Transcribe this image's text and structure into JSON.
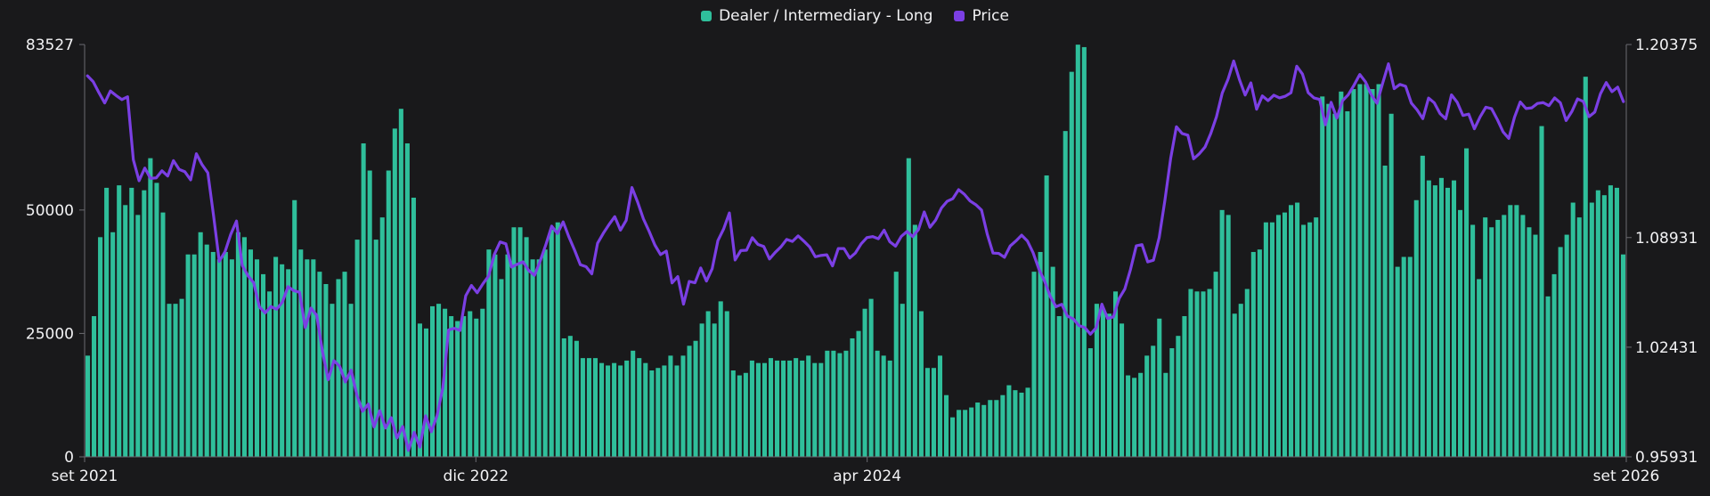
{
  "legend": {
    "series_1": "Dealer / Intermediary - Long",
    "series_2": "Price"
  },
  "colors": {
    "bars": "#2fbf9b",
    "line": "#7b3fe4",
    "axis": "#6a6a70",
    "background": "#19191b"
  },
  "chart_data": {
    "type": "bar",
    "series": [
      {
        "name": "Dealer / Intermediary - Long",
        "type": "bar",
        "axis": "left",
        "values": [
          20500,
          28500,
          44500,
          54500,
          45500,
          55000,
          51000,
          54500,
          49000,
          54000,
          60500,
          55500,
          49500,
          31000,
          31000,
          32000,
          41000,
          41000,
          45500,
          43000,
          41500,
          40000,
          41500,
          40000,
          45500,
          44500,
          42000,
          40000,
          37000,
          33500,
          40500,
          39000,
          38000,
          52000,
          42000,
          40000,
          40000,
          37500,
          35000,
          31000,
          36000,
          37500,
          31000,
          44000,
          63500,
          58000,
          44000,
          48500,
          58000,
          66500,
          70500,
          63500,
          52500,
          27000,
          26000,
          30500,
          31000,
          30000,
          28500,
          27500,
          28500,
          29500,
          28000,
          30000,
          42000,
          41000,
          36000,
          41000,
          46500,
          46500,
          44500,
          40000,
          40000,
          42000,
          46000,
          47500,
          24000,
          24500,
          23500,
          20000,
          20000,
          20000,
          19000,
          18500,
          19000,
          18500,
          19500,
          21500,
          20000,
          19000,
          17500,
          18000,
          18500,
          20500,
          18500,
          20500,
          22500,
          23500,
          27000,
          29500,
          27000,
          31500,
          29500,
          17500,
          16500,
          17000,
          19500,
          19000,
          19000,
          20000,
          19500,
          19500,
          19500,
          20000,
          19500,
          20500,
          19000,
          19000,
          21500,
          21500,
          21000,
          21500,
          24000,
          25500,
          30000,
          32000,
          21500,
          20500,
          19500,
          37500,
          31000,
          60500,
          47000,
          29500,
          18000,
          18000,
          20500,
          12500,
          8000,
          9500,
          9500,
          10000,
          11000,
          10500,
          11500,
          11500,
          12500,
          14500,
          13500,
          13000,
          14000,
          37500,
          41500,
          57000,
          38500,
          28500,
          66000,
          78000,
          83500,
          83000,
          22000,
          31000,
          30000,
          29000,
          33500,
          27000,
          16500,
          16000,
          17000,
          20500,
          22500,
          28000,
          17000,
          22000,
          24500,
          28500,
          34000,
          33500,
          33500,
          34000,
          37500,
          50000,
          49000,
          29000,
          31000,
          34000,
          41500,
          42000,
          47500,
          47500,
          49000,
          49500,
          51000,
          51500,
          47000,
          47500,
          48500,
          73000,
          71500,
          69500,
          74000,
          70000,
          74500,
          75500,
          75500,
          74500,
          75500,
          59000,
          69500,
          38500,
          40500,
          40500,
          52000,
          61000,
          56000,
          55000,
          56500,
          54500,
          56000,
          50000,
          62500,
          47000,
          36000,
          48500,
          46500,
          48000,
          49000,
          51000,
          51000,
          49000,
          46500,
          45000,
          67000,
          32500,
          37000,
          42500,
          45000,
          51500,
          48500,
          77000,
          51500,
          54000,
          53000,
          55000,
          54500,
          41000
        ]
      },
      {
        "name": "Price",
        "type": "line",
        "axis": "right",
        "values": [
          1.1852,
          1.1817,
          1.1752,
          1.1691,
          1.1762,
          1.1735,
          1.1711,
          1.1728,
          1.1355,
          1.123,
          1.1305,
          1.1244,
          1.1247,
          1.1289,
          1.1258,
          1.1349,
          1.1297,
          1.1283,
          1.1235,
          1.139,
          1.1325,
          1.1277,
          1.1023,
          1.0752,
          1.0809,
          1.0912,
          1.0991,
          1.0729,
          1.0667,
          1.0625,
          1.0482,
          1.0446,
          1.0484,
          1.0468,
          1.051,
          1.0602,
          1.0578,
          1.0569,
          1.0359,
          1.0475,
          1.0432,
          1.0219,
          1.005,
          1.0163,
          1.013,
          1.0037,
          1.0107,
          0.996,
          0.9863,
          0.9906,
          0.977,
          0.9866,
          0.9764,
          0.9825,
          0.9705,
          0.9773,
          0.9631,
          0.9738,
          0.9651,
          0.9836,
          0.9742,
          0.9838,
          1.0001,
          1.0345,
          1.0355,
          1.0342,
          1.0548,
          1.0609,
          1.0566,
          1.0619,
          1.0665,
          1.0794,
          1.0867,
          1.0856,
          1.0718,
          1.0735,
          1.0749,
          1.0697,
          1.0669,
          1.0755,
          1.0853,
          1.0961,
          1.0917,
          1.0986,
          1.0897,
          1.0818,
          1.0732,
          1.072,
          1.0678,
          1.0859,
          1.0918,
          1.097,
          1.1017,
          1.0937,
          1.0995,
          1.119,
          1.1103,
          1.1004,
          1.093,
          1.0849,
          1.0792,
          1.0813,
          1.0624,
          1.0662,
          1.0498,
          1.0633,
          1.0625,
          1.0713,
          1.0635,
          1.0708,
          1.0875,
          1.0944,
          1.1039,
          1.076,
          1.0816,
          1.0818,
          1.0892,
          1.0852,
          1.084,
          1.0766,
          1.0805,
          1.0838,
          1.0882,
          1.087,
          1.0903,
          1.0872,
          1.0838,
          1.0779,
          1.0787,
          1.0791,
          1.0725,
          1.0828,
          1.0828,
          1.0772,
          1.0802,
          1.0856,
          1.0893,
          1.0899,
          1.0886,
          1.0937,
          1.0868,
          1.0842,
          1.09,
          1.0929,
          1.0899,
          1.0941,
          1.1045,
          1.0954,
          1.0997,
          1.1068,
          1.1108,
          1.1124,
          1.1177,
          1.115,
          1.111,
          1.1088,
          1.1056,
          1.0913,
          1.0801,
          1.0799,
          1.0776,
          1.0843,
          1.0873,
          1.0907,
          1.0873,
          1.0803,
          1.0707,
          1.0635,
          1.0543,
          1.0483,
          1.0497,
          1.0427,
          1.0411,
          1.0371,
          1.036,
          1.032,
          1.0358,
          1.0498,
          1.0413,
          1.0423,
          1.0531,
          1.0588,
          1.0705,
          1.0844,
          1.0851,
          1.0749,
          1.0759,
          1.0893,
          1.1115,
          1.1362,
          1.155,
          1.151,
          1.15,
          1.136,
          1.139,
          1.143,
          1.151,
          1.161,
          1.175,
          1.183,
          1.194,
          1.183,
          1.1738,
          1.181,
          1.1654,
          1.1733,
          1.1705,
          1.1737,
          1.1721,
          1.1731,
          1.1752,
          1.1909,
          1.1862,
          1.1752,
          1.1721,
          1.1712,
          1.1562,
          1.1695,
          1.1601,
          1.1705,
          1.174,
          1.1797,
          1.186,
          1.1816,
          1.174,
          1.1689,
          1.1809,
          1.1923,
          1.1776,
          1.1801,
          1.179,
          1.169,
          1.165,
          1.1598,
          1.172,
          1.1692,
          1.1628,
          1.1597,
          1.1739,
          1.1695,
          1.1617,
          1.1625,
          1.1538,
          1.1609,
          1.1666,
          1.1657,
          1.1593,
          1.152,
          1.1481,
          1.1607,
          1.1697,
          1.1658,
          1.1662,
          1.1688,
          1.1693,
          1.1675,
          1.1721,
          1.1692,
          1.1587,
          1.164,
          1.1715,
          1.17,
          1.161,
          1.1637,
          1.1746,
          1.1812,
          1.1758,
          1.1785,
          1.1699
        ]
      }
    ],
    "x_tick_labels": [
      "set 2021",
      "dic 2022",
      "apr 2024",
      "set 2026"
    ],
    "y_left": {
      "ticks": [
        "0",
        "25000",
        "50000",
        "83527"
      ],
      "range": [
        0,
        83527
      ]
    },
    "y_right": {
      "ticks": [
        "0.95931",
        "1.02431",
        "1.08931",
        "1.20375"
      ],
      "range": [
        0.95931,
        1.20375
      ]
    },
    "legend_position": "top-center",
    "grid": false
  }
}
